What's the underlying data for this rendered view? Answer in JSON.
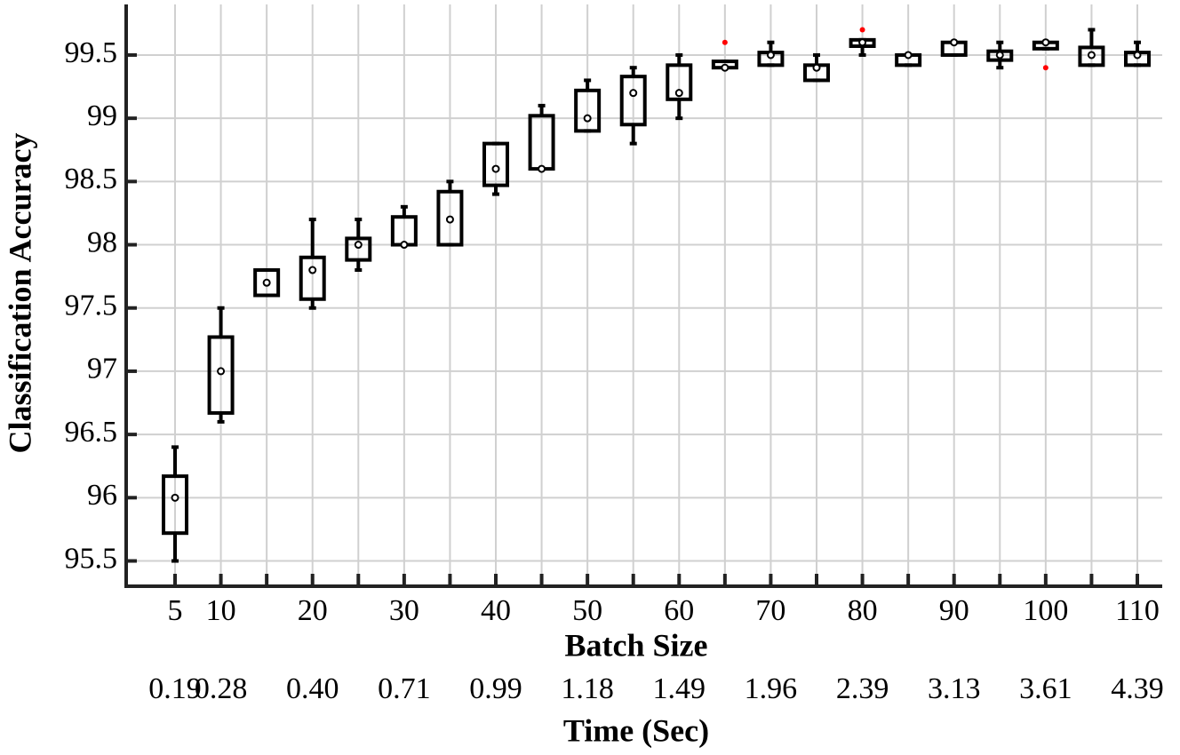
{
  "chart_data": {
    "type": "box",
    "xlabel": "Batch Size",
    "ylabel": "Classification Accuracy",
    "secondary_xlabel": "Time (Sec)",
    "categories": [
      "5",
      "10",
      null,
      "20",
      null,
      "30",
      null,
      "40",
      null,
      "50",
      null,
      "60",
      null,
      "70",
      null,
      "80",
      null,
      "90",
      null,
      "100",
      null,
      "110"
    ],
    "secondary_labels": [
      "0.19",
      "0.28",
      null,
      "0.40",
      null,
      "0.71",
      null,
      "0.99",
      null,
      "1.18",
      null,
      "1.49",
      null,
      "1.96",
      null,
      "2.39",
      null,
      "3.13",
      null,
      "3.61",
      null,
      "4.39"
    ],
    "boxes": [
      {
        "low": 95.5,
        "q1": 95.72,
        "median": 96.0,
        "q3": 96.17,
        "high": 96.4,
        "outliers": []
      },
      {
        "low": 96.6,
        "q1": 96.67,
        "median": 97.0,
        "q3": 97.27,
        "high": 97.5,
        "outliers": []
      },
      {
        "low": 97.6,
        "q1": 97.6,
        "median": 97.7,
        "q3": 97.8,
        "high": 97.8,
        "outliers": []
      },
      {
        "low": 97.5,
        "q1": 97.57,
        "median": 97.8,
        "q3": 97.9,
        "high": 98.2,
        "outliers": []
      },
      {
        "low": 97.8,
        "q1": 97.88,
        "median": 98.0,
        "q3": 98.05,
        "high": 98.2,
        "outliers": []
      },
      {
        "low": 98.0,
        "q1": 98.0,
        "median": 98.0,
        "q3": 98.22,
        "high": 98.3,
        "outliers": []
      },
      {
        "low": 98.0,
        "q1": 98.0,
        "median": 98.2,
        "q3": 98.42,
        "high": 98.5,
        "outliers": []
      },
      {
        "low": 98.4,
        "q1": 98.47,
        "median": 98.6,
        "q3": 98.8,
        "high": 98.8,
        "outliers": []
      },
      {
        "low": 98.6,
        "q1": 98.6,
        "median": 98.6,
        "q3": 99.02,
        "high": 99.1,
        "outliers": []
      },
      {
        "low": 98.9,
        "q1": 98.9,
        "median": 99.0,
        "q3": 99.22,
        "high": 99.3,
        "outliers": []
      },
      {
        "low": 98.8,
        "q1": 98.95,
        "median": 99.2,
        "q3": 99.33,
        "high": 99.4,
        "outliers": []
      },
      {
        "low": 99.0,
        "q1": 99.15,
        "median": 99.2,
        "q3": 99.42,
        "high": 99.5,
        "outliers": []
      },
      {
        "low": 99.4,
        "q1": 99.4,
        "median": 99.4,
        "q3": 99.45,
        "high": 99.45,
        "outliers": [
          99.6
        ]
      },
      {
        "low": 99.42,
        "q1": 99.42,
        "median": 99.5,
        "q3": 99.52,
        "high": 99.6,
        "outliers": []
      },
      {
        "low": 99.3,
        "q1": 99.3,
        "median": 99.4,
        "q3": 99.42,
        "high": 99.5,
        "outliers": []
      },
      {
        "low": 99.5,
        "q1": 99.57,
        "median": 99.6,
        "q3": 99.62,
        "high": 99.62,
        "outliers": [
          99.7
        ]
      },
      {
        "low": 99.42,
        "q1": 99.42,
        "median": 99.5,
        "q3": 99.5,
        "high": 99.5,
        "outliers": []
      },
      {
        "low": 99.5,
        "q1": 99.5,
        "median": 99.6,
        "q3": 99.6,
        "high": 99.6,
        "outliers": []
      },
      {
        "low": 99.4,
        "q1": 99.46,
        "median": 99.5,
        "q3": 99.53,
        "high": 99.6,
        "outliers": []
      },
      {
        "low": 99.55,
        "q1": 99.55,
        "median": 99.6,
        "q3": 99.6,
        "high": 99.6,
        "outliers": [
          99.4
        ]
      },
      {
        "low": 99.42,
        "q1": 99.42,
        "median": 99.5,
        "q3": 99.56,
        "high": 99.7,
        "outliers": []
      },
      {
        "low": 99.42,
        "q1": 99.42,
        "median": 99.5,
        "q3": 99.52,
        "high": 99.6,
        "outliers": []
      }
    ],
    "color": "#000000",
    "outlier_color": "#ff0000",
    "ylim": [
      95.3,
      99.9
    ],
    "yticks": [
      95.5,
      96,
      96.5,
      97,
      97.5,
      98,
      98.5,
      99,
      99.5
    ],
    "grid": true
  }
}
